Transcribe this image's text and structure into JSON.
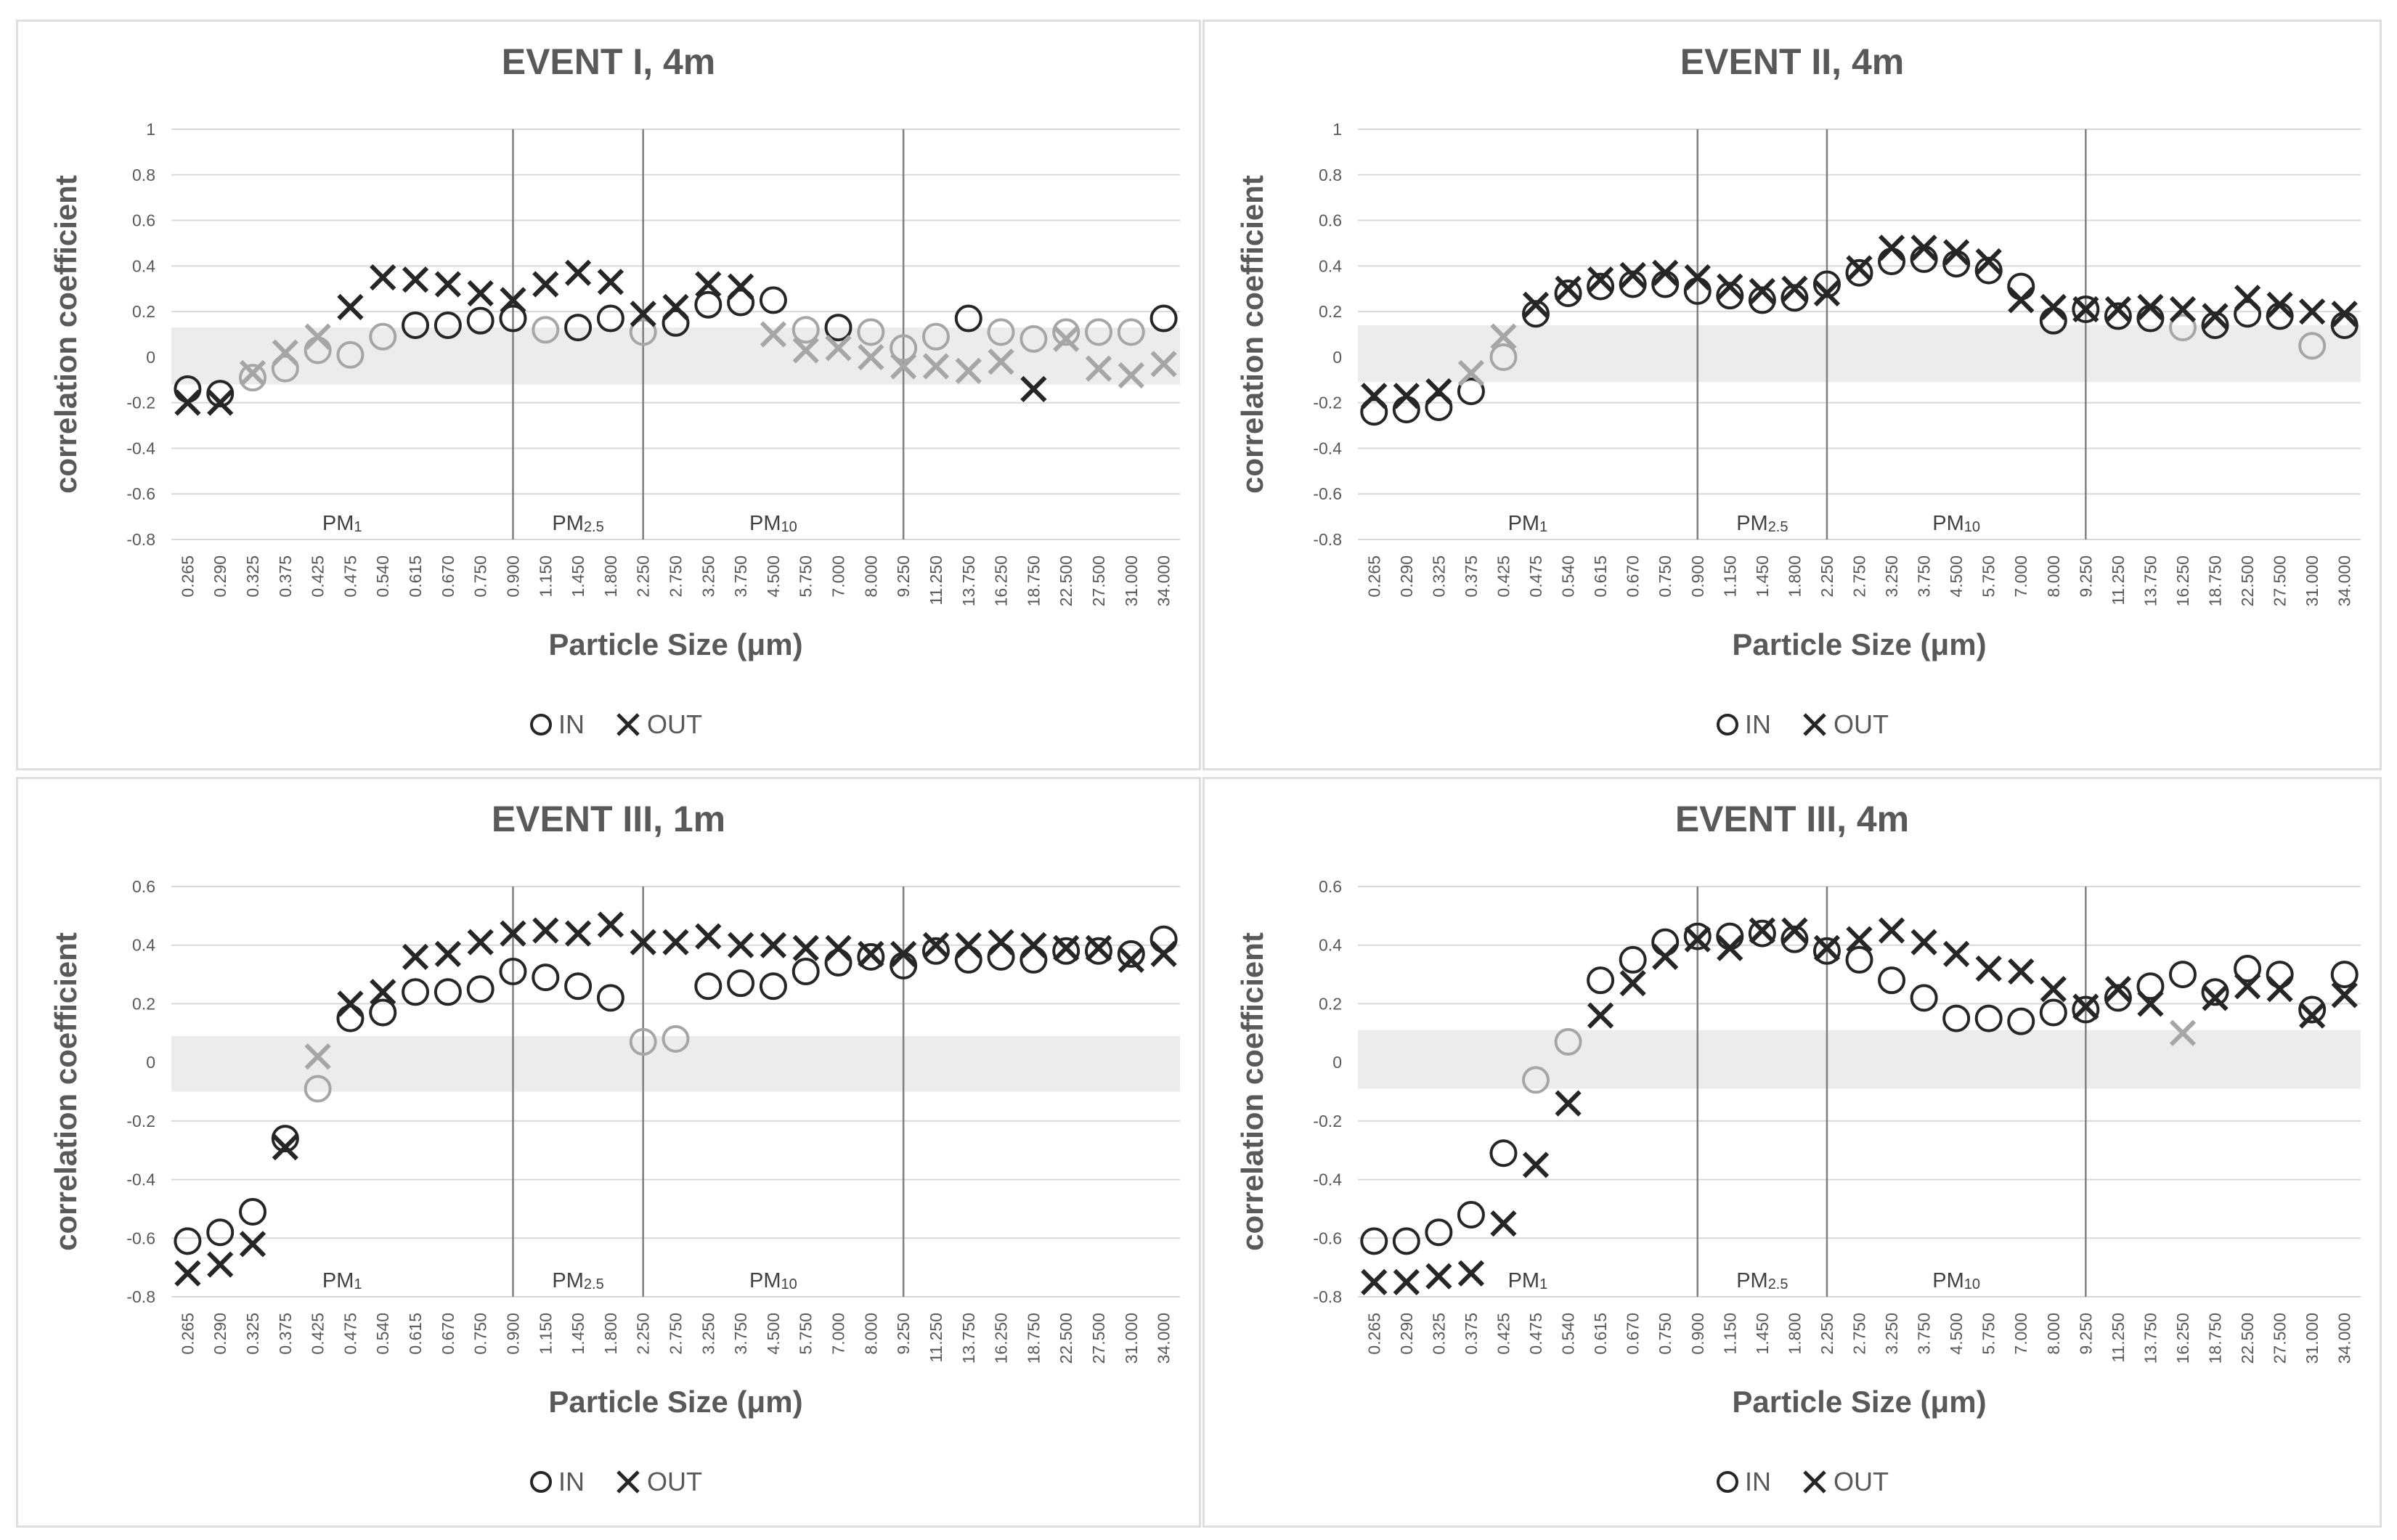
{
  "chart_data": [
    {
      "type": "scatter",
      "title": "EVENT I, 4m",
      "xlabel": "Particle Size (μm)",
      "ylabel": "correlation coefficient",
      "ylim": [
        -0.8,
        1
      ],
      "yticks": [
        "1",
        "0.8",
        "0.6",
        "0.4",
        "0.2",
        "0",
        "-0.2",
        "-0.4",
        "-0.6",
        "-0.8"
      ],
      "categories": [
        "0.265",
        "0.290",
        "0.325",
        "0.375",
        "0.425",
        "0.475",
        "0.540",
        "0.615",
        "0.670",
        "0.750",
        "0.900",
        "1.150",
        "1.450",
        "1.800",
        "2.250",
        "2.750",
        "3.250",
        "3.750",
        "4.500",
        "5.750",
        "7.000",
        "8.000",
        "9.250",
        "11.250",
        "13.750",
        "16.250",
        "18.750",
        "22.500",
        "27.500",
        "31.000",
        "34.000"
      ],
      "insignificant_band": [
        -0.12,
        0.13
      ],
      "regions": [
        {
          "label": "PM",
          "sub": "1"
        },
        {
          "label": "PM",
          "sub": "2.5"
        },
        {
          "label": "PM",
          "sub": "10"
        }
      ],
      "legend": {
        "in": "IN",
        "out": "OUT"
      },
      "series": [
        {
          "name": "IN",
          "marker": "circle",
          "values": [
            -0.14,
            -0.16,
            -0.09,
            -0.05,
            0.03,
            0.01,
            0.09,
            0.14,
            0.14,
            0.16,
            0.17,
            0.12,
            0.13,
            0.17,
            0.11,
            0.15,
            0.23,
            0.24,
            0.25,
            0.12,
            0.13,
            0.11,
            0.04,
            0.09,
            0.17,
            0.11,
            0.08,
            0.11,
            0.11,
            0.11,
            0.17
          ]
        },
        {
          "name": "OUT",
          "marker": "cross",
          "values": [
            -0.2,
            -0.2,
            -0.07,
            0.02,
            0.09,
            0.22,
            0.35,
            0.34,
            0.32,
            0.28,
            0.25,
            0.32,
            0.37,
            0.33,
            0.19,
            0.22,
            0.32,
            0.31,
            0.1,
            0.03,
            0.04,
            0.0,
            -0.04,
            -0.04,
            -0.06,
            -0.02,
            -0.14,
            0.08,
            -0.05,
            -0.08,
            -0.03
          ]
        }
      ]
    },
    {
      "type": "scatter",
      "title": "EVENT II, 4m",
      "xlabel": "Particle Size (μm)",
      "ylabel": "correlation coefficient",
      "ylim": [
        -0.8,
        1
      ],
      "yticks": [
        "1",
        "0.8",
        "0.6",
        "0.4",
        "0.2",
        "0",
        "-0.2",
        "-0.4",
        "-0.6",
        "-0.8"
      ],
      "categories": [
        "0.265",
        "0.290",
        "0.325",
        "0.375",
        "0.425",
        "0.475",
        "0.540",
        "0.615",
        "0.670",
        "0.750",
        "0.900",
        "1.150",
        "1.450",
        "1.800",
        "2.250",
        "2.750",
        "3.250",
        "3.750",
        "4.500",
        "5.750",
        "7.000",
        "8.000",
        "9.250",
        "11.250",
        "13.750",
        "16.250",
        "18.750",
        "22.500",
        "27.500",
        "31.000",
        "34.000"
      ],
      "insignificant_band": [
        -0.11,
        0.14
      ],
      "regions": [
        {
          "label": "PM",
          "sub": "1"
        },
        {
          "label": "PM",
          "sub": "2.5"
        },
        {
          "label": "PM",
          "sub": "10"
        }
      ],
      "legend": {
        "in": "IN",
        "out": "OUT"
      },
      "series": [
        {
          "name": "IN",
          "marker": "circle",
          "values": [
            -0.24,
            -0.23,
            -0.22,
            -0.15,
            0.0,
            0.19,
            0.28,
            0.31,
            0.32,
            0.32,
            0.29,
            0.27,
            0.25,
            0.26,
            0.32,
            0.37,
            0.42,
            0.43,
            0.41,
            0.38,
            0.31,
            0.16,
            0.21,
            0.18,
            0.17,
            0.13,
            0.14,
            0.19,
            0.18,
            0.05,
            0.14
          ]
        },
        {
          "name": "OUT",
          "marker": "cross",
          "values": [
            -0.17,
            -0.17,
            -0.15,
            -0.07,
            0.09,
            0.23,
            0.3,
            0.34,
            0.36,
            0.37,
            0.35,
            0.31,
            0.29,
            0.3,
            0.28,
            0.39,
            0.48,
            0.48,
            0.46,
            0.42,
            0.25,
            0.22,
            0.21,
            0.21,
            0.22,
            0.21,
            0.18,
            0.26,
            0.23,
            0.2,
            0.19
          ]
        }
      ]
    },
    {
      "type": "scatter",
      "title": "EVENT III, 1m",
      "xlabel": "Particle Size (μm)",
      "ylabel": "correlation coefficient",
      "ylim": [
        -0.8,
        0.6
      ],
      "yticks": [
        "0.6",
        "0.4",
        "0.2",
        "0",
        "-0.2",
        "-0.4",
        "-0.6",
        "-0.8"
      ],
      "categories": [
        "0.265",
        "0.290",
        "0.325",
        "0.375",
        "0.425",
        "0.475",
        "0.540",
        "0.615",
        "0.670",
        "0.750",
        "0.900",
        "1.150",
        "1.450",
        "1.800",
        "2.250",
        "2.750",
        "3.250",
        "3.750",
        "4.500",
        "5.750",
        "7.000",
        "8.000",
        "9.250",
        "11.250",
        "13.750",
        "16.250",
        "18.750",
        "22.500",
        "27.500",
        "31.000",
        "34.000"
      ],
      "insignificant_band": [
        -0.1,
        0.09
      ],
      "regions": [
        {
          "label": "PM",
          "sub": "1"
        },
        {
          "label": "PM",
          "sub": "2.5"
        },
        {
          "label": "PM",
          "sub": "10"
        }
      ],
      "legend": {
        "in": "IN",
        "out": "OUT"
      },
      "series": [
        {
          "name": "IN",
          "marker": "circle",
          "values": [
            -0.61,
            -0.58,
            -0.51,
            -0.26,
            -0.09,
            0.15,
            0.17,
            0.24,
            0.24,
            0.25,
            0.31,
            0.29,
            0.26,
            0.22,
            0.07,
            0.08,
            0.26,
            0.27,
            0.26,
            0.31,
            0.34,
            0.36,
            0.33,
            0.38,
            0.35,
            0.36,
            0.35,
            0.38,
            0.38,
            0.37,
            0.42
          ]
        },
        {
          "name": "OUT",
          "marker": "cross",
          "values": [
            -0.72,
            -0.69,
            -0.62,
            -0.29,
            0.02,
            0.2,
            0.24,
            0.36,
            0.37,
            0.41,
            0.44,
            0.45,
            0.44,
            0.47,
            0.41,
            0.41,
            0.43,
            0.4,
            0.4,
            0.39,
            0.39,
            0.37,
            0.37,
            0.4,
            0.4,
            0.41,
            0.4,
            0.39,
            0.39,
            0.35,
            0.37
          ]
        }
      ]
    },
    {
      "type": "scatter",
      "title": "EVENT III, 4m",
      "xlabel": "Particle Size (μm)",
      "ylabel": "correlation coefficient",
      "ylim": [
        -0.8,
        0.6
      ],
      "yticks": [
        "0.6",
        "0.4",
        "0.2",
        "0",
        "-0.2",
        "-0.4",
        "-0.6",
        "-0.8"
      ],
      "categories": [
        "0.265",
        "0.290",
        "0.325",
        "0.375",
        "0.425",
        "0.475",
        "0.540",
        "0.615",
        "0.670",
        "0.750",
        "0.900",
        "1.150",
        "1.450",
        "1.800",
        "2.250",
        "2.750",
        "3.250",
        "3.750",
        "4.500",
        "5.750",
        "7.000",
        "8.000",
        "9.250",
        "11.250",
        "13.750",
        "16.250",
        "18.750",
        "22.500",
        "27.500",
        "31.000",
        "34.000"
      ],
      "insignificant_band": [
        -0.09,
        0.11
      ],
      "regions": [
        {
          "label": "PM",
          "sub": "1"
        },
        {
          "label": "PM",
          "sub": "2.5"
        },
        {
          "label": "PM",
          "sub": "10"
        }
      ],
      "legend": {
        "in": "IN",
        "out": "OUT"
      },
      "series": [
        {
          "name": "IN",
          "marker": "circle",
          "values": [
            -0.61,
            -0.61,
            -0.58,
            -0.52,
            -0.31,
            -0.06,
            0.07,
            0.28,
            0.35,
            0.41,
            0.43,
            0.43,
            0.44,
            0.42,
            0.38,
            0.35,
            0.28,
            0.22,
            0.15,
            0.15,
            0.14,
            0.17,
            0.18,
            0.22,
            0.26,
            0.3,
            0.24,
            0.32,
            0.3,
            0.18,
            0.3
          ]
        },
        {
          "name": "OUT",
          "marker": "cross",
          "values": [
            -0.75,
            -0.75,
            -0.73,
            -0.72,
            -0.55,
            -0.35,
            -0.14,
            0.16,
            0.27,
            0.36,
            0.42,
            0.39,
            0.45,
            0.45,
            0.39,
            0.42,
            0.45,
            0.41,
            0.37,
            0.32,
            0.31,
            0.25,
            0.19,
            0.25,
            0.2,
            0.1,
            0.22,
            0.26,
            0.25,
            0.16,
            0.23
          ]
        }
      ]
    }
  ]
}
